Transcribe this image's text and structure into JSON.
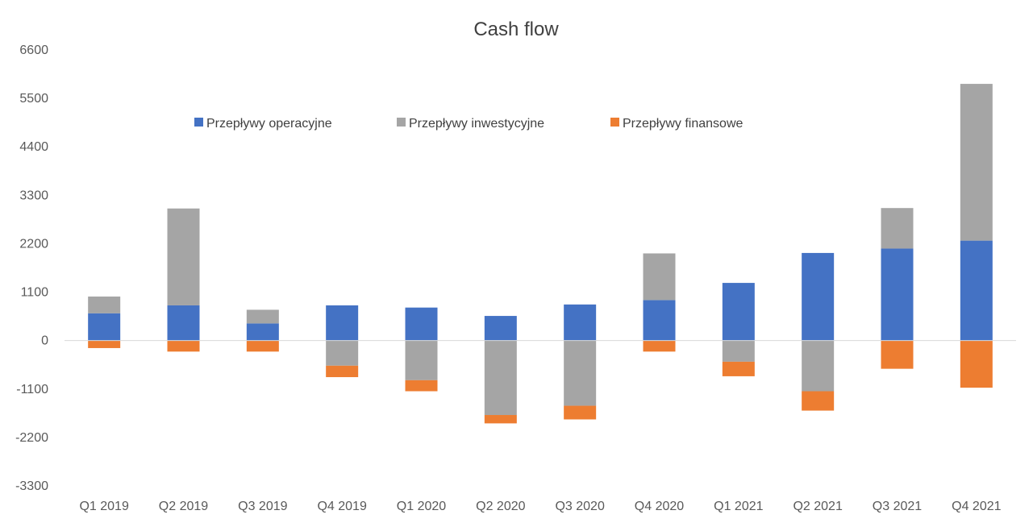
{
  "chart_data": {
    "type": "bar",
    "stacked": true,
    "title": "Cash flow",
    "xlabel": "",
    "ylabel": "",
    "categories": [
      "Q1 2019",
      "Q2 2019",
      "Q3 2019",
      "Q4 2019",
      "Q1 2020",
      "Q2 2020",
      "Q3 2020",
      "Q4 2020",
      "Q1 2021",
      "Q2 2021",
      "Q3 2021",
      "Q4 2021"
    ],
    "series": [
      {
        "name": "Przepływy operacyjne",
        "color": "#4472C4",
        "values": [
          620,
          800,
          390,
          800,
          750,
          560,
          820,
          920,
          1310,
          1990,
          2090,
          2270
        ]
      },
      {
        "name": "Przepływy inwestycyjne",
        "color": "#A5A5A5",
        "values": [
          380,
          2200,
          310,
          -570,
          -900,
          -1690,
          -1480,
          1060,
          -480,
          -1150,
          920,
          3560
        ]
      },
      {
        "name": "Przepływy finansowe",
        "color": "#ED7D31",
        "values": [
          -170,
          -250,
          -250,
          -260,
          -250,
          -190,
          -310,
          -250,
          -330,
          -440,
          -640,
          -1070
        ]
      }
    ],
    "ylim": [
      -3300,
      6600
    ],
    "yticks": [
      6600,
      5500,
      4400,
      3300,
      2200,
      1100,
      0,
      -1100,
      -2200,
      -3300
    ],
    "grid": false,
    "legend": "top"
  }
}
